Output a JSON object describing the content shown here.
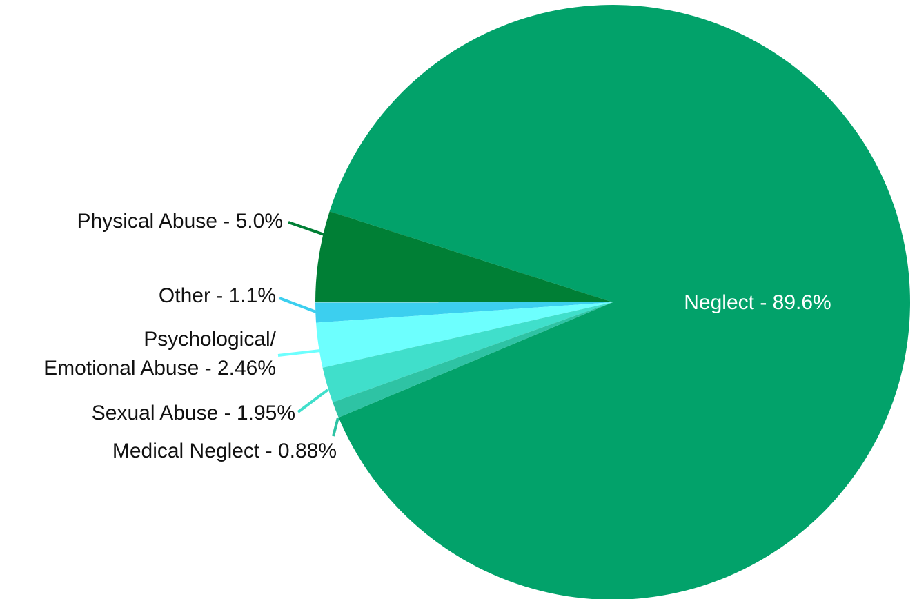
{
  "chart_data": {
    "type": "pie",
    "values": [
      89.6,
      5.0,
      1.1,
      2.46,
      1.95,
      0.88
    ],
    "value_labels": [
      "Neglect - 89.6%",
      "Physical Abuse - 5.0%",
      "Other - 1.1%",
      "Psychological/\nEmotional Abuse - 2.46%",
      "Sexual Abuse - 1.95%",
      "Medical Neglect - 0.88%"
    ],
    "colors": [
      "#02a26a",
      "#007f35",
      "#3ccfef",
      "#6dfffe",
      "#40dfcb",
      "#2ec3a4"
    ]
  }
}
